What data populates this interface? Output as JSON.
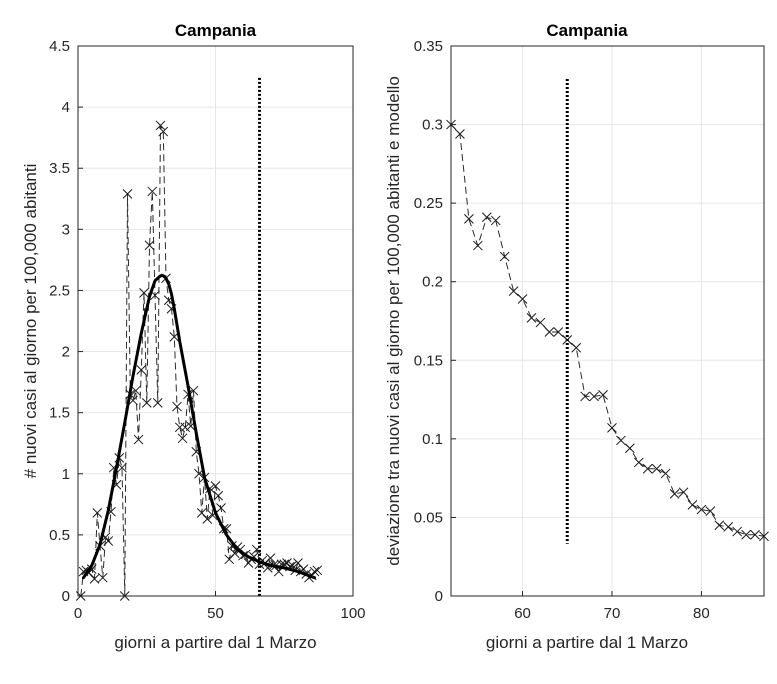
{
  "chart_data": [
    {
      "type": "line",
      "title": "Campania",
      "xlabel": "giorni a partire dal 1 Marzo",
      "ylabel": "# nuovi casi al giorno per 100,000 abitanti",
      "xlim": [
        0,
        100
      ],
      "ylim": [
        0,
        4.5
      ],
      "xticks": [
        "0",
        "50",
        "100"
      ],
      "yticks": [
        "0",
        "0.5",
        "1",
        "1.5",
        "2",
        "2.5",
        "3",
        "3.5",
        "4",
        "4.5"
      ],
      "grid": true,
      "vline_x": 66,
      "series": [
        {
          "style": "dashed-with-x-markers",
          "x": [
            1,
            2,
            3,
            4,
            5,
            6,
            7,
            8,
            9,
            10,
            11,
            12,
            13,
            14,
            15,
            16,
            17,
            18,
            19,
            20,
            21,
            22,
            23,
            24,
            25,
            26,
            27,
            28,
            29,
            30,
            31,
            32,
            33,
            34,
            35,
            36,
            37,
            38,
            39,
            40,
            41,
            42,
            43,
            44,
            45,
            46,
            47,
            48,
            49,
            50,
            51,
            52,
            53,
            54,
            55,
            56,
            57,
            58,
            59,
            60,
            61,
            62,
            63,
            64,
            65,
            66,
            67,
            68,
            69,
            70,
            71,
            72,
            73,
            74,
            75,
            76,
            77,
            78,
            79,
            80,
            81,
            82,
            83,
            84,
            85,
            86,
            87
          ],
          "y": [
            0.0,
            0.2,
            0.21,
            0.19,
            0.22,
            0.14,
            0.68,
            0.41,
            0.15,
            0.48,
            0.45,
            0.69,
            1.05,
            0.91,
            1.13,
            1.05,
            0.0,
            3.29,
            1.65,
            1.6,
            1.68,
            1.28,
            1.85,
            2.48,
            1.58,
            2.87,
            3.31,
            2.46,
            1.58,
            3.85,
            3.8,
            2.6,
            2.42,
            2.35,
            2.12,
            1.55,
            1.38,
            1.29,
            1.38,
            1.65,
            1.39,
            1.68,
            1.18,
            1.0,
            0.68,
            0.97,
            0.63,
            0.88,
            0.66,
            0.9,
            0.82,
            0.72,
            0.55,
            0.55,
            0.3,
            0.41,
            0.35,
            0.4,
            0.38,
            0.33,
            0.34,
            0.27,
            0.3,
            0.32,
            0.38,
            0.26,
            0.29,
            0.27,
            0.23,
            0.31,
            0.25,
            0.25,
            0.2,
            0.26,
            0.26,
            0.27,
            0.24,
            0.25,
            0.21,
            0.27,
            0.2,
            0.22,
            0.18,
            0.15,
            0.17,
            0.2,
            0.21
          ]
        },
        {
          "style": "solid-thick",
          "x": [
            2,
            5,
            8,
            11,
            14,
            17,
            20,
            23,
            26,
            28,
            30,
            31,
            32,
            33,
            34,
            35,
            37,
            40,
            43,
            46,
            50,
            54,
            58,
            62,
            66,
            70,
            75,
            80,
            86
          ],
          "y": [
            0.15,
            0.25,
            0.42,
            0.7,
            1.05,
            1.42,
            1.8,
            2.15,
            2.45,
            2.58,
            2.62,
            2.62,
            2.6,
            2.55,
            2.47,
            2.35,
            2.08,
            1.72,
            1.33,
            0.97,
            0.68,
            0.5,
            0.38,
            0.32,
            0.28,
            0.25,
            0.23,
            0.2,
            0.15
          ]
        }
      ]
    },
    {
      "type": "line",
      "title": "Campania",
      "xlabel": "giorni a partire dal 1 Marzo",
      "ylabel": "deviazione tra nuovi casi al giorno per 100,000 abitanti e modello",
      "xlim": [
        52,
        87
      ],
      "ylim": [
        0,
        0.35
      ],
      "xticks": [
        "60",
        "70",
        "80"
      ],
      "yticks": [
        "0",
        "0.05",
        "0.1",
        "0.15",
        "0.2",
        "0.25",
        "0.3",
        "0.35"
      ],
      "grid": true,
      "vline_x": 65,
      "series": [
        {
          "style": "dashed-with-x-markers",
          "x": [
            52,
            53,
            54,
            55,
            56,
            57,
            58,
            59,
            60,
            61,
            62,
            63,
            64,
            65,
            66,
            67,
            68,
            69,
            70,
            71,
            72,
            73,
            74,
            75,
            76,
            77,
            78,
            79,
            80,
            81,
            82,
            83,
            84,
            85,
            86,
            87
          ],
          "y": [
            0.3,
            0.294,
            0.24,
            0.223,
            0.241,
            0.239,
            0.216,
            0.194,
            0.189,
            0.177,
            0.174,
            0.168,
            0.168,
            0.163,
            0.158,
            0.127,
            0.127,
            0.128,
            0.107,
            0.099,
            0.094,
            0.085,
            0.081,
            0.081,
            0.078,
            0.065,
            0.066,
            0.058,
            0.055,
            0.054,
            0.045,
            0.044,
            0.041,
            0.039,
            0.039,
            0.038
          ]
        }
      ]
    }
  ]
}
